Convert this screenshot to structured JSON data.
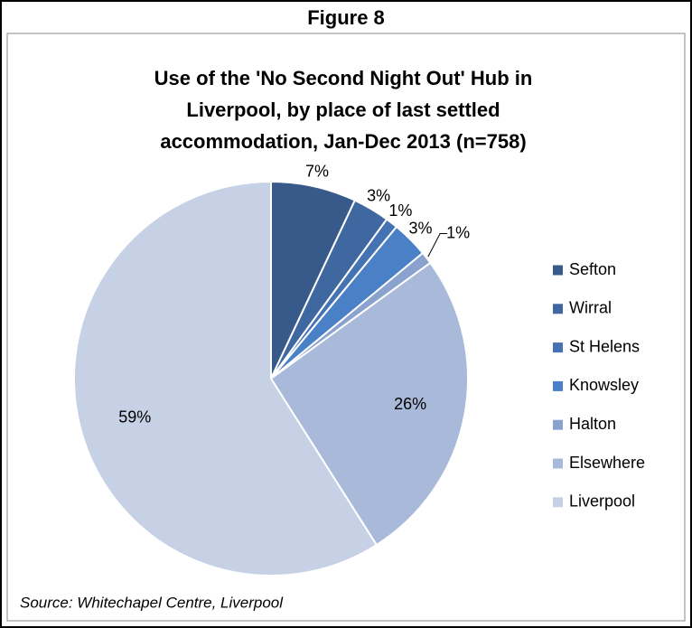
{
  "chart_data": {
    "type": "pie",
    "figure_label": "Figure 8",
    "title": [
      "Use of the 'No Second Night Out' Hub in",
      "Liverpool, by place of last settled",
      "accommodation, Jan-Dec 2013 (n=758)"
    ],
    "source": "Source: Whitechapel Centre, Liverpool",
    "categories": [
      "Sefton",
      "Wirral",
      "St Helens",
      "Knowsley",
      "Halton",
      "Elsewhere",
      "Liverpool"
    ],
    "values": [
      7,
      3,
      1,
      3,
      1,
      26,
      59
    ],
    "value_labels": [
      "7%",
      "3%",
      "1%",
      "3%",
      "1%",
      "26%",
      "59%"
    ],
    "colors": [
      "#375a8a",
      "#3f67a0",
      "#4472b2",
      "#4a80c6",
      "#8aa2ce",
      "#a9b9d9",
      "#c6d1e5"
    ],
    "legend": "right"
  }
}
